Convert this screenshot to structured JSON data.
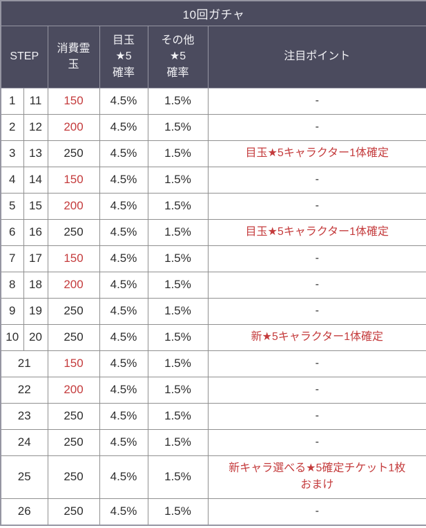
{
  "table": {
    "title": "10回ガチャ",
    "columns": {
      "step": "STEP",
      "cost": "消費霊\n玉",
      "featured": "目玉\n★5\n確率",
      "other": "その他\n★5\n確率",
      "note": "注目ポイント"
    },
    "colors": {
      "header_bg": "#4b4b5e",
      "header_text": "#f2f2f5",
      "header_line": "#9595a2",
      "body_text": "#2d2d2d",
      "accent_red": "#c43b3c",
      "grid_line": "#8f8f8f"
    },
    "rows": [
      {
        "step1": "1",
        "step2": "11",
        "cost": "150",
        "cost_red": true,
        "featured": "4.5%",
        "other": "1.5%",
        "note": "-",
        "note_red": false
      },
      {
        "step1": "2",
        "step2": "12",
        "cost": "200",
        "cost_red": true,
        "featured": "4.5%",
        "other": "1.5%",
        "note": "-",
        "note_red": false
      },
      {
        "step1": "3",
        "step2": "13",
        "cost": "250",
        "cost_red": false,
        "featured": "4.5%",
        "other": "1.5%",
        "note": "目玉★5キャラクター1体確定",
        "note_red": true
      },
      {
        "step1": "4",
        "step2": "14",
        "cost": "150",
        "cost_red": true,
        "featured": "4.5%",
        "other": "1.5%",
        "note": "-",
        "note_red": false
      },
      {
        "step1": "5",
        "step2": "15",
        "cost": "200",
        "cost_red": true,
        "featured": "4.5%",
        "other": "1.5%",
        "note": "-",
        "note_red": false
      },
      {
        "step1": "6",
        "step2": "16",
        "cost": "250",
        "cost_red": false,
        "featured": "4.5%",
        "other": "1.5%",
        "note": "目玉★5キャラクター1体確定",
        "note_red": true
      },
      {
        "step1": "7",
        "step2": "17",
        "cost": "150",
        "cost_red": true,
        "featured": "4.5%",
        "other": "1.5%",
        "note": "-",
        "note_red": false
      },
      {
        "step1": "8",
        "step2": "18",
        "cost": "200",
        "cost_red": true,
        "featured": "4.5%",
        "other": "1.5%",
        "note": "-",
        "note_red": false
      },
      {
        "step1": "9",
        "step2": "19",
        "cost": "250",
        "cost_red": false,
        "featured": "4.5%",
        "other": "1.5%",
        "note": "-",
        "note_red": false
      },
      {
        "step1": "10",
        "step2": "20",
        "cost": "250",
        "cost_red": false,
        "featured": "4.5%",
        "other": "1.5%",
        "note": "新★5キャラクター1体確定",
        "note_red": true
      },
      {
        "step1": "21",
        "step2": null,
        "cost": "150",
        "cost_red": true,
        "featured": "4.5%",
        "other": "1.5%",
        "note": "-",
        "note_red": false
      },
      {
        "step1": "22",
        "step2": null,
        "cost": "200",
        "cost_red": true,
        "featured": "4.5%",
        "other": "1.5%",
        "note": "-",
        "note_red": false
      },
      {
        "step1": "23",
        "step2": null,
        "cost": "250",
        "cost_red": false,
        "featured": "4.5%",
        "other": "1.5%",
        "note": "-",
        "note_red": false
      },
      {
        "step1": "24",
        "step2": null,
        "cost": "250",
        "cost_red": false,
        "featured": "4.5%",
        "other": "1.5%",
        "note": "-",
        "note_red": false
      },
      {
        "step1": "25",
        "step2": null,
        "cost": "250",
        "cost_red": false,
        "featured": "4.5%",
        "other": "1.5%",
        "note": "新キャラ選べる★5確定チケット1枚おまけ",
        "note_red": true
      },
      {
        "step1": "26",
        "step2": null,
        "cost": "250",
        "cost_red": false,
        "featured": "4.5%",
        "other": "1.5%",
        "note": "-",
        "note_red": false
      }
    ]
  }
}
